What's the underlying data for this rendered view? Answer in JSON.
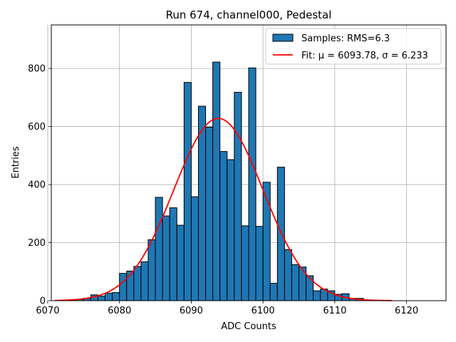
{
  "chart_data": {
    "type": "bar",
    "title": "Run 674, channel000, Pedestal",
    "xlabel": "ADC Counts",
    "ylabel": "Entries",
    "xlim": [
      6070.5,
      6125.5
    ],
    "ylim": [
      0,
      950
    ],
    "xticks": [
      6070,
      6080,
      6090,
      6100,
      6110,
      6120
    ],
    "yticks": [
      0,
      200,
      400,
      600,
      800
    ],
    "grid": true,
    "legend_position": "top-right",
    "histogram": {
      "name": "Samples: RMS=6.3",
      "bin_width": 1,
      "bin_starts": [
        6073,
        6074,
        6075,
        6076,
        6077,
        6078,
        6079,
        6080,
        6081,
        6082,
        6083,
        6084,
        6085,
        6086,
        6087,
        6088,
        6089,
        6090,
        6091,
        6092,
        6093,
        6094,
        6095,
        6096,
        6097,
        6098,
        6099,
        6100,
        6101,
        6102,
        6103,
        6104,
        6105,
        6106,
        6107,
        6108,
        6109,
        6110,
        6111,
        6112,
        6113,
        6114
      ],
      "values": [
        2,
        4,
        8,
        20,
        16,
        26,
        28,
        94,
        102,
        118,
        134,
        210,
        356,
        292,
        320,
        260,
        752,
        358,
        670,
        598,
        822,
        514,
        486,
        718,
        258,
        802,
        256,
        408,
        60,
        460,
        176,
        124,
        116,
        86,
        34,
        40,
        34,
        22,
        24,
        8,
        8,
        2
      ],
      "color": "#1f77b4",
      "edge_color": "#000000"
    },
    "fit": {
      "name": "Fit: μ = 6093.78, σ = 6.233",
      "mu": 6093.78,
      "sigma": 6.233,
      "amplitude": 628,
      "x_range": [
        6071,
        6118
      ],
      "color": "#ff0000"
    }
  }
}
